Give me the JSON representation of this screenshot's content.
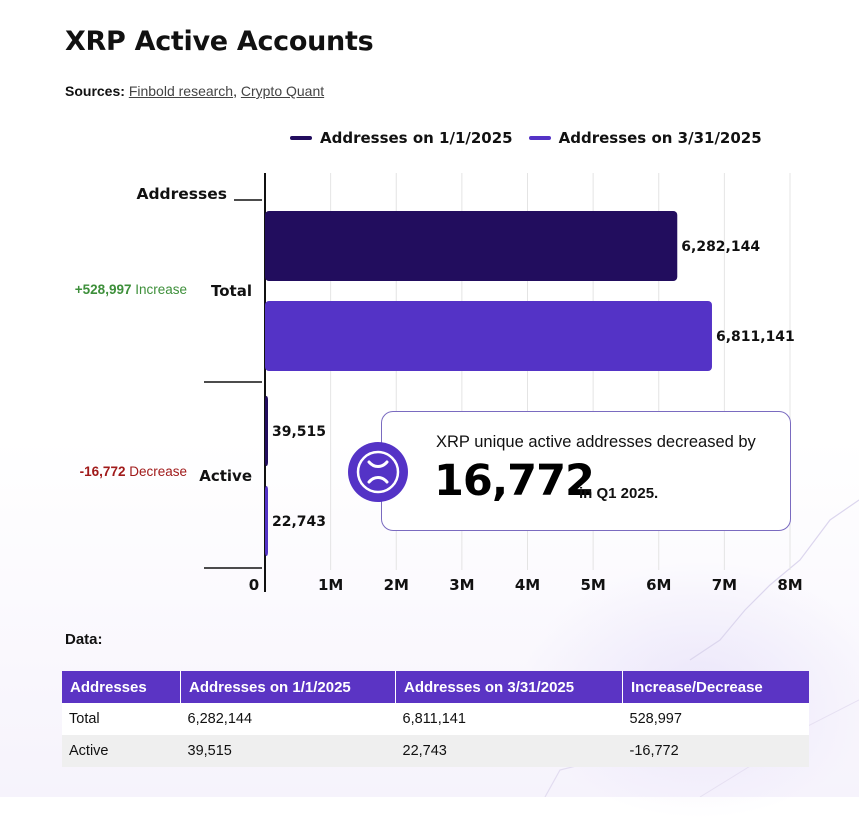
{
  "title": "XRP Active Accounts",
  "sources": {
    "label": "Sources:",
    "items": [
      "Finbold research",
      "Crypto Quant"
    ],
    "separator": ","
  },
  "colors": {
    "series_1": "#220d5e",
    "series_2": "#5433c6",
    "increase": "#3d8f3a",
    "decrease": "#a01a1a",
    "table_header": "#5b34c4"
  },
  "chart_data": {
    "type": "bar",
    "orientation": "horizontal",
    "axis_title": "Addresses",
    "categories": [
      "Total",
      "Active"
    ],
    "series": [
      {
        "name": "Addresses on 1/1/2025",
        "values": [
          6282144,
          39515
        ]
      },
      {
        "name": "Addresses on 3/31/2025",
        "values": [
          6811141,
          22743
        ]
      }
    ],
    "value_labels": [
      [
        "6,282,144",
        "39,515"
      ],
      [
        "6,811,141",
        "22,743"
      ]
    ],
    "changes": [
      {
        "value": "+528,997",
        "word": "Increase",
        "direction": "up"
      },
      {
        "value": "-16,772",
        "word": "Decrease",
        "direction": "down"
      }
    ],
    "xlim": [
      0,
      8000000
    ],
    "xticks": [
      0,
      1000000,
      2000000,
      3000000,
      4000000,
      5000000,
      6000000,
      7000000,
      8000000
    ],
    "xtick_labels": [
      "0",
      "1M",
      "2M",
      "3M",
      "4M",
      "5M",
      "6M",
      "7M",
      "8M"
    ],
    "grid": true,
    "legend_position": "top"
  },
  "callout": {
    "line1": "XRP unique active addresses decreased by",
    "number": "16,772",
    "suffix": "in Q1 2025.",
    "icon": "xrp-logo-icon"
  },
  "table": {
    "label": "Data:",
    "headers": [
      "Addresses",
      "Addresses on 1/1/2025",
      "Addresses on 3/31/2025",
      "Increase/Decrease"
    ],
    "rows": [
      [
        "Total",
        "6,282,144",
        "6,811,141",
        "528,997"
      ],
      [
        "Active",
        "39,515",
        "22,743",
        "-16,772"
      ]
    ]
  }
}
